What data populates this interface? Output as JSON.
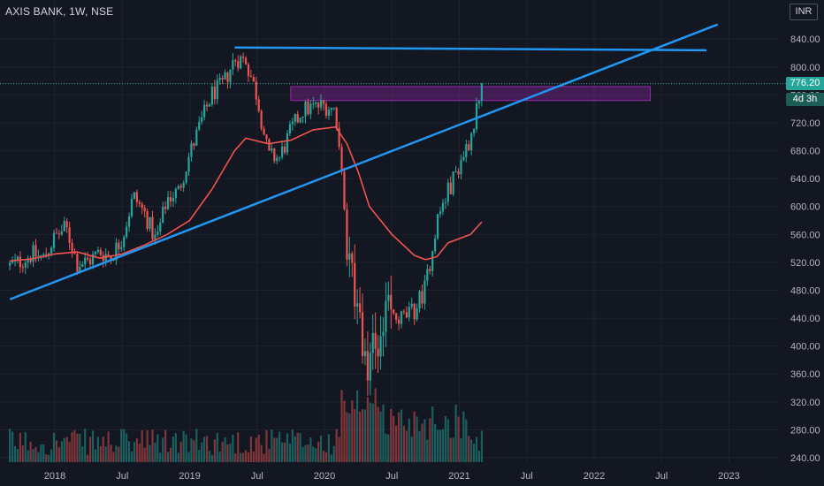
{
  "header": {
    "symbol": "AXIS BANK",
    "interval": "1W",
    "exchange": "NSE",
    "currency": "INR"
  },
  "price_tag": {
    "last_price": "776.20",
    "countdown": "4d 3h"
  },
  "colors": {
    "background": "#131722",
    "up": "#26a69a",
    "down": "#ef5350",
    "trendline": "#2196f3",
    "moving_average": "#f05350",
    "zone": "#9c27b0",
    "axis_text": "#b2b5be"
  },
  "chart_data": {
    "type": "candlestick",
    "x_axis": {
      "ticks": [
        "2018",
        "Jul",
        "2019",
        "Jul",
        "2020",
        "Jul",
        "2021",
        "Jul",
        "2022",
        "Jul",
        "2023"
      ],
      "range": [
        "2017-09",
        "2023-06"
      ]
    },
    "y_axis": {
      "ticks": [
        "240.00",
        "280.00",
        "320.00",
        "360.00",
        "400.00",
        "440.00",
        "480.00",
        "520.00",
        "560.00",
        "600.00",
        "640.00",
        "680.00",
        "720.00",
        "760.00",
        "800.00",
        "840.00"
      ],
      "range": [
        236,
        880
      ]
    },
    "price_path": [
      [
        "2017-09",
        515
      ],
      [
        "2017-10",
        522
      ],
      [
        "2017-11",
        532
      ],
      [
        "2017-12",
        526
      ],
      [
        "2018-01",
        556
      ],
      [
        "2018-02",
        570
      ],
      [
        "2018-03",
        518
      ],
      [
        "2018-04",
        522
      ],
      [
        "2018-05",
        535
      ],
      [
        "2018-06",
        528
      ],
      [
        "2018-07",
        555
      ],
      [
        "2018-08",
        615
      ],
      [
        "2018-09",
        590
      ],
      [
        "2018-10",
        550
      ],
      [
        "2018-11",
        612
      ],
      [
        "2018-12",
        622
      ],
      [
        "2019-01",
        675
      ],
      [
        "2019-02",
        720
      ],
      [
        "2019-03",
        762
      ],
      [
        "2019-04",
        775
      ],
      [
        "2019-05",
        812
      ],
      [
        "2019-06",
        810
      ],
      [
        "2019-07",
        758
      ],
      [
        "2019-08",
        672
      ],
      [
        "2019-09",
        670
      ],
      [
        "2019-10",
        708
      ],
      [
        "2019-11",
        738
      ],
      [
        "2019-12",
        742
      ],
      [
        "2020-01",
        745
      ],
      [
        "2020-02",
        738
      ],
      [
        "2020-03",
        560
      ],
      [
        "2020-04",
        420
      ],
      [
        "2020-05",
        360
      ],
      [
        "2020-06",
        430
      ],
      [
        "2020-07",
        440
      ],
      [
        "2020-08",
        440
      ],
      [
        "2020-09",
        450
      ],
      [
        "2020-10",
        485
      ],
      [
        "2020-11",
        580
      ],
      [
        "2020-12",
        622
      ],
      [
        "2021-01",
        660
      ],
      [
        "2021-02",
        700
      ],
      [
        "2021-03",
        776
      ]
    ],
    "last_price": 776.2,
    "moving_average_path": [
      [
        "2017-09",
        522
      ],
      [
        "2017-11",
        525
      ],
      [
        "2018-01",
        532
      ],
      [
        "2018-03",
        535
      ],
      [
        "2018-05",
        526
      ],
      [
        "2018-07",
        532
      ],
      [
        "2018-09",
        545
      ],
      [
        "2018-11",
        560
      ],
      [
        "2019-01",
        580
      ],
      [
        "2019-03",
        625
      ],
      [
        "2019-05",
        680
      ],
      [
        "2019-06",
        698
      ],
      [
        "2019-08",
        690
      ],
      [
        "2019-10",
        695
      ],
      [
        "2019-12",
        710
      ],
      [
        "2020-02",
        714
      ],
      [
        "2020-03",
        690
      ],
      [
        "2020-04",
        650
      ],
      [
        "2020-05",
        600
      ],
      [
        "2020-07",
        560
      ],
      [
        "2020-09",
        530
      ],
      [
        "2020-10",
        524
      ],
      [
        "2020-11",
        528
      ],
      [
        "2020-12",
        548
      ],
      [
        "2021-02",
        560
      ],
      [
        "2021-03",
        578
      ]
    ],
    "annotations": {
      "resistance_line": {
        "from": [
          "2019-05",
          828
        ],
        "to": [
          "2022-11",
          824
        ]
      },
      "rising_trendline": {
        "from": [
          "2017-09",
          467
        ],
        "to": [
          "2022-12",
          861
        ]
      },
      "supply_zone": {
        "from": "2019-10",
        "to": "2022-06",
        "low": 752,
        "high": 772
      }
    },
    "legend": "none",
    "grid": true
  }
}
